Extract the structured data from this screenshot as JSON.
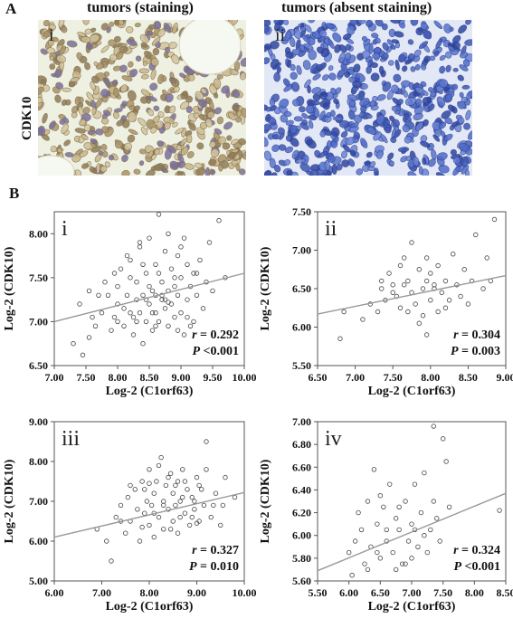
{
  "panel_a": {
    "letter": "A",
    "row_label": "CDK10",
    "images": [
      {
        "title": "tumors (staining)",
        "roman": "i"
      },
      {
        "title": "tumors (absent staining)",
        "roman": "ii"
      }
    ],
    "colors": {
      "brown_tissue": "#bba67c",
      "background_light": "#eef0e2",
      "blue_tissue": "#4f6bc8",
      "blue_bg": "#e3e8f6"
    }
  },
  "panel_b": {
    "letter": "B"
  },
  "chart_data": [
    {
      "type": "scatter",
      "panel": "i",
      "xlabel": "Log-2 (C1orf63)",
      "ylabel": "Log-2 (CDK10)",
      "xlim": [
        7.0,
        10.0
      ],
      "ylim": [
        6.5,
        8.25
      ],
      "xticks": [
        "7.00",
        "7.50",
        "8.00",
        "8.50",
        "9.00",
        "9.50",
        "10.00"
      ],
      "yticks": [
        "6.50",
        "7.00",
        "7.50",
        "8.00"
      ],
      "r_label": "r",
      "r_value": "= 0.292",
      "p_label": "P",
      "p_value": "<0.001",
      "fit": [
        [
          7.0,
          7.0
        ],
        [
          10.0,
          7.55
        ]
      ],
      "points": [
        [
          7.3,
          6.75
        ],
        [
          7.45,
          6.62
        ],
        [
          7.55,
          6.82
        ],
        [
          7.65,
          6.95
        ],
        [
          7.4,
          7.2
        ],
        [
          7.55,
          7.35
        ],
        [
          7.6,
          7.05
        ],
        [
          7.75,
          7.1
        ],
        [
          7.8,
          7.45
        ],
        [
          7.85,
          7.3
        ],
        [
          7.9,
          6.9
        ],
        [
          7.95,
          7.05
        ],
        [
          8.0,
          7.2
        ],
        [
          8.0,
          7.4
        ],
        [
          8.05,
          7.6
        ],
        [
          8.1,
          7.15
        ],
        [
          8.1,
          6.95
        ],
        [
          8.15,
          7.3
        ],
        [
          8.2,
          7.5
        ],
        [
          8.2,
          7.7
        ],
        [
          8.25,
          7.05
        ],
        [
          8.25,
          6.85
        ],
        [
          8.3,
          7.25
        ],
        [
          8.3,
          7.45
        ],
        [
          8.35,
          7.1
        ],
        [
          8.35,
          7.85
        ],
        [
          8.4,
          7.3
        ],
        [
          8.4,
          6.75
        ],
        [
          8.45,
          7.0
        ],
        [
          8.45,
          7.55
        ],
        [
          8.5,
          7.2
        ],
        [
          8.5,
          7.4
        ],
        [
          8.5,
          7.95
        ],
        [
          8.55,
          7.1
        ],
        [
          8.55,
          6.9
        ],
        [
          8.6,
          7.3
        ],
        [
          8.6,
          7.65
        ],
        [
          8.65,
          8.22
        ],
        [
          8.65,
          7.0
        ],
        [
          8.7,
          7.25
        ],
        [
          8.7,
          7.45
        ],
        [
          8.75,
          7.15
        ],
        [
          8.75,
          7.8
        ],
        [
          8.8,
          7.35
        ],
        [
          8.8,
          6.95
        ],
        [
          8.85,
          7.2
        ],
        [
          8.85,
          7.6
        ],
        [
          8.9,
          7.05
        ],
        [
          8.9,
          7.4
        ],
        [
          8.95,
          7.3
        ],
        [
          8.95,
          7.75
        ],
        [
          9.0,
          7.1
        ],
        [
          9.0,
          7.5
        ],
        [
          9.05,
          6.85
        ],
        [
          9.05,
          7.95
        ],
        [
          9.1,
          7.25
        ],
        [
          9.1,
          7.65
        ],
        [
          9.15,
          7.4
        ],
        [
          9.2,
          7.0
        ],
        [
          9.2,
          7.55
        ],
        [
          9.25,
          7.3
        ],
        [
          9.3,
          7.7
        ],
        [
          9.35,
          7.15
        ],
        [
          9.4,
          7.45
        ],
        [
          9.45,
          7.9
        ],
        [
          9.5,
          7.35
        ],
        [
          9.6,
          8.15
        ],
        [
          9.7,
          7.5
        ],
        [
          8.0,
          7.0
        ],
        [
          8.3,
          7.0
        ],
        [
          8.6,
          7.1
        ],
        [
          8.75,
          7.25
        ],
        [
          8.8,
          7.22
        ],
        [
          8.7,
          7.3
        ],
        [
          8.55,
          7.35
        ],
        [
          8.45,
          7.25
        ],
        [
          8.9,
          7.5
        ],
        [
          8.2,
          7.1
        ],
        [
          7.95,
          7.55
        ],
        [
          8.65,
          7.55
        ],
        [
          8.4,
          7.65
        ],
        [
          9.0,
          7.85
        ],
        [
          8.35,
          7.9
        ],
        [
          8.8,
          8.0
        ],
        [
          7.7,
          7.3
        ],
        [
          8.15,
          7.75
        ],
        [
          9.1,
          7.05
        ],
        [
          9.25,
          7.55
        ],
        [
          8.6,
          6.95
        ],
        [
          8.95,
          6.9
        ],
        [
          9.15,
          6.95
        ]
      ]
    },
    {
      "type": "scatter",
      "panel": "ii",
      "xlabel": "Log-2 (C1orf63)",
      "ylabel": "Log-2 (CDK10)",
      "xlim": [
        6.5,
        9.0
      ],
      "ylim": [
        5.5,
        7.5
      ],
      "xticks": [
        "6.50",
        "7.00",
        "7.50",
        "8.00",
        "8.50",
        "9.00"
      ],
      "yticks": [
        "5.50",
        "6.00",
        "6.50",
        "7.00",
        "7.50"
      ],
      "r_label": "r",
      "r_value": "= 0.304",
      "p_label": "P",
      "p_value": "= 0.003",
      "fit": [
        [
          6.5,
          6.17
        ],
        [
          9.0,
          6.67
        ]
      ],
      "points": [
        [
          6.8,
          5.85
        ],
        [
          6.85,
          6.2
        ],
        [
          7.1,
          6.1
        ],
        [
          7.2,
          6.3
        ],
        [
          7.3,
          6.2
        ],
        [
          7.35,
          6.5
        ],
        [
          7.4,
          6.35
        ],
        [
          7.45,
          6.7
        ],
        [
          7.5,
          6.55
        ],
        [
          7.55,
          6.4
        ],
        [
          7.6,
          6.8
        ],
        [
          7.6,
          6.25
        ],
        [
          7.65,
          6.9
        ],
        [
          7.7,
          6.6
        ],
        [
          7.75,
          7.1
        ],
        [
          7.75,
          6.45
        ],
        [
          7.8,
          6.3
        ],
        [
          7.85,
          6.75
        ],
        [
          7.85,
          6.05
        ],
        [
          7.9,
          6.5
        ],
        [
          7.95,
          6.6
        ],
        [
          7.95,
          6.9
        ],
        [
          8.0,
          6.35
        ],
        [
          8.0,
          6.7
        ],
        [
          8.05,
          6.5
        ],
        [
          8.1,
          6.2
        ],
        [
          8.1,
          6.8
        ],
        [
          8.15,
          6.45
        ],
        [
          8.2,
          6.6
        ],
        [
          8.25,
          6.35
        ],
        [
          8.3,
          6.95
        ],
        [
          8.35,
          6.55
        ],
        [
          8.4,
          6.4
        ],
        [
          8.45,
          6.75
        ],
        [
          8.5,
          6.3
        ],
        [
          8.55,
          6.6
        ],
        [
          8.6,
          7.2
        ],
        [
          8.7,
          6.5
        ],
        [
          8.75,
          6.9
        ],
        [
          8.85,
          7.4
        ],
        [
          8.8,
          6.6
        ],
        [
          7.5,
          6.45
        ],
        [
          7.7,
          6.2
        ],
        [
          7.9,
          6.15
        ],
        [
          8.2,
          6.25
        ],
        [
          7.35,
          6.6
        ],
        [
          7.95,
          5.9
        ],
        [
          8.05,
          6.55
        ],
        [
          7.65,
          6.55
        ]
      ]
    },
    {
      "type": "scatter",
      "panel": "iii",
      "xlabel": "Log-2 (C1orf63)",
      "ylabel": "Log-2 (CDK10)",
      "xlim": [
        6.0,
        10.0
      ],
      "ylim": [
        5.0,
        9.0
      ],
      "xticks": [
        "6.00",
        "7.00",
        "8.00",
        "9.00",
        "10.00"
      ],
      "yticks": [
        "5.00",
        "6.00",
        "7.00",
        "8.00",
        "9.00"
      ],
      "r_label": "r",
      "r_value": "= 0.327",
      "p_label": "P",
      "p_value": "= 0.010",
      "fit": [
        [
          6.0,
          6.1
        ],
        [
          10.0,
          7.22
        ]
      ],
      "points": [
        [
          6.9,
          6.3
        ],
        [
          7.1,
          6.0
        ],
        [
          7.2,
          5.5
        ],
        [
          7.3,
          6.6
        ],
        [
          7.4,
          6.9
        ],
        [
          7.5,
          6.2
        ],
        [
          7.55,
          7.1
        ],
        [
          7.6,
          6.5
        ],
        [
          7.7,
          7.3
        ],
        [
          7.75,
          6.8
        ],
        [
          7.8,
          6.0
        ],
        [
          7.85,
          7.5
        ],
        [
          7.9,
          6.7
        ],
        [
          7.95,
          7.0
        ],
        [
          8.0,
          6.4
        ],
        [
          8.0,
          7.8
        ],
        [
          8.05,
          6.9
        ],
        [
          8.1,
          7.2
        ],
        [
          8.1,
          6.1
        ],
        [
          8.15,
          7.5
        ],
        [
          8.2,
          6.6
        ],
        [
          8.25,
          8.1
        ],
        [
          8.3,
          7.0
        ],
        [
          8.3,
          6.3
        ],
        [
          8.35,
          7.4
        ],
        [
          8.4,
          6.8
        ],
        [
          8.45,
          7.7
        ],
        [
          8.5,
          6.5
        ],
        [
          8.5,
          7.2
        ],
        [
          8.55,
          6.9
        ],
        [
          8.6,
          7.5
        ],
        [
          8.6,
          6.2
        ],
        [
          8.65,
          7.0
        ],
        [
          8.7,
          7.8
        ],
        [
          8.75,
          6.7
        ],
        [
          8.8,
          7.3
        ],
        [
          8.85,
          6.4
        ],
        [
          8.9,
          7.1
        ],
        [
          8.95,
          6.8
        ],
        [
          9.0,
          7.6
        ],
        [
          9.05,
          6.5
        ],
        [
          9.1,
          7.3
        ],
        [
          9.15,
          6.9
        ],
        [
          9.2,
          7.8
        ],
        [
          9.3,
          6.6
        ],
        [
          9.4,
          7.2
        ],
        [
          9.5,
          6.4
        ],
        [
          9.6,
          7.6
        ],
        [
          9.2,
          8.5
        ],
        [
          9.8,
          7.1
        ],
        [
          8.2,
          7.9
        ],
        [
          8.4,
          7.6
        ],
        [
          8.7,
          7.1
        ],
        [
          8.9,
          6.6
        ],
        [
          7.9,
          7.3
        ],
        [
          8.1,
          6.7
        ],
        [
          8.3,
          6.9
        ],
        [
          8.55,
          7.4
        ],
        [
          8.75,
          7.5
        ],
        [
          8.95,
          7.0
        ],
        [
          9.05,
          7.4
        ],
        [
          7.6,
          7.4
        ],
        [
          7.4,
          6.5
        ],
        [
          9.35,
          6.9
        ],
        [
          9.55,
          6.9
        ],
        [
          8.45,
          6.3
        ],
        [
          8.65,
          6.6
        ],
        [
          7.85,
          6.35
        ],
        [
          8.0,
          7.45
        ],
        [
          9.0,
          6.45
        ]
      ]
    },
    {
      "type": "scatter",
      "panel": "iv",
      "xlabel": "Log-2 (C1orf63)",
      "ylabel": "Log-2 (CDK10)",
      "xlim": [
        5.5,
        8.5
      ],
      "ylim": [
        5.6,
        7.0
      ],
      "xticks": [
        "5.50",
        "6.00",
        "6.50",
        "7.00",
        "7.50",
        "8.00",
        "8.50"
      ],
      "yticks": [
        "5.60",
        "5.80",
        "6.00",
        "6.20",
        "6.40",
        "6.60",
        "6.80",
        "7.00"
      ],
      "r_label": "r",
      "r_value": "= 0.324",
      "p_label": "P",
      "p_value": "<0.001",
      "fit": [
        [
          5.5,
          5.69
        ],
        [
          8.5,
          6.37
        ]
      ],
      "points": [
        [
          6.0,
          5.85
        ],
        [
          6.05,
          5.65
        ],
        [
          6.1,
          5.95
        ],
        [
          6.2,
          6.05
        ],
        [
          6.25,
          5.75
        ],
        [
          6.3,
          6.3
        ],
        [
          6.35,
          5.9
        ],
        [
          6.4,
          6.58
        ],
        [
          6.45,
          6.1
        ],
        [
          6.5,
          5.8
        ],
        [
          6.55,
          6.25
        ],
        [
          6.6,
          5.95
        ],
        [
          6.65,
          6.45
        ],
        [
          6.7,
          5.85
        ],
        [
          6.75,
          6.15
        ],
        [
          6.8,
          6.05
        ],
        [
          6.85,
          5.75
        ],
        [
          6.9,
          6.3
        ],
        [
          6.95,
          5.95
        ],
        [
          7.0,
          6.1
        ],
        [
          7.05,
          6.45
        ],
        [
          7.1,
          5.9
        ],
        [
          7.15,
          6.2
        ],
        [
          7.2,
          6.55
        ],
        [
          7.25,
          5.85
        ],
        [
          7.3,
          6.05
        ],
        [
          7.35,
          6.96
        ],
        [
          7.4,
          6.15
        ],
        [
          7.45,
          5.95
        ],
        [
          7.5,
          6.85
        ],
        [
          7.55,
          6.65
        ],
        [
          7.6,
          6.25
        ],
        [
          8.4,
          6.22
        ],
        [
          6.3,
          5.7
        ],
        [
          6.6,
          6.05
        ],
        [
          6.8,
          6.25
        ],
        [
          7.0,
          5.8
        ],
        [
          7.2,
          6.0
        ],
        [
          6.45,
          5.85
        ],
        [
          6.15,
          6.2
        ],
        [
          6.75,
          5.7
        ],
        [
          7.05,
          6.05
        ],
        [
          7.35,
          6.3
        ],
        [
          6.5,
          6.35
        ],
        [
          6.9,
          5.75
        ]
      ]
    }
  ]
}
